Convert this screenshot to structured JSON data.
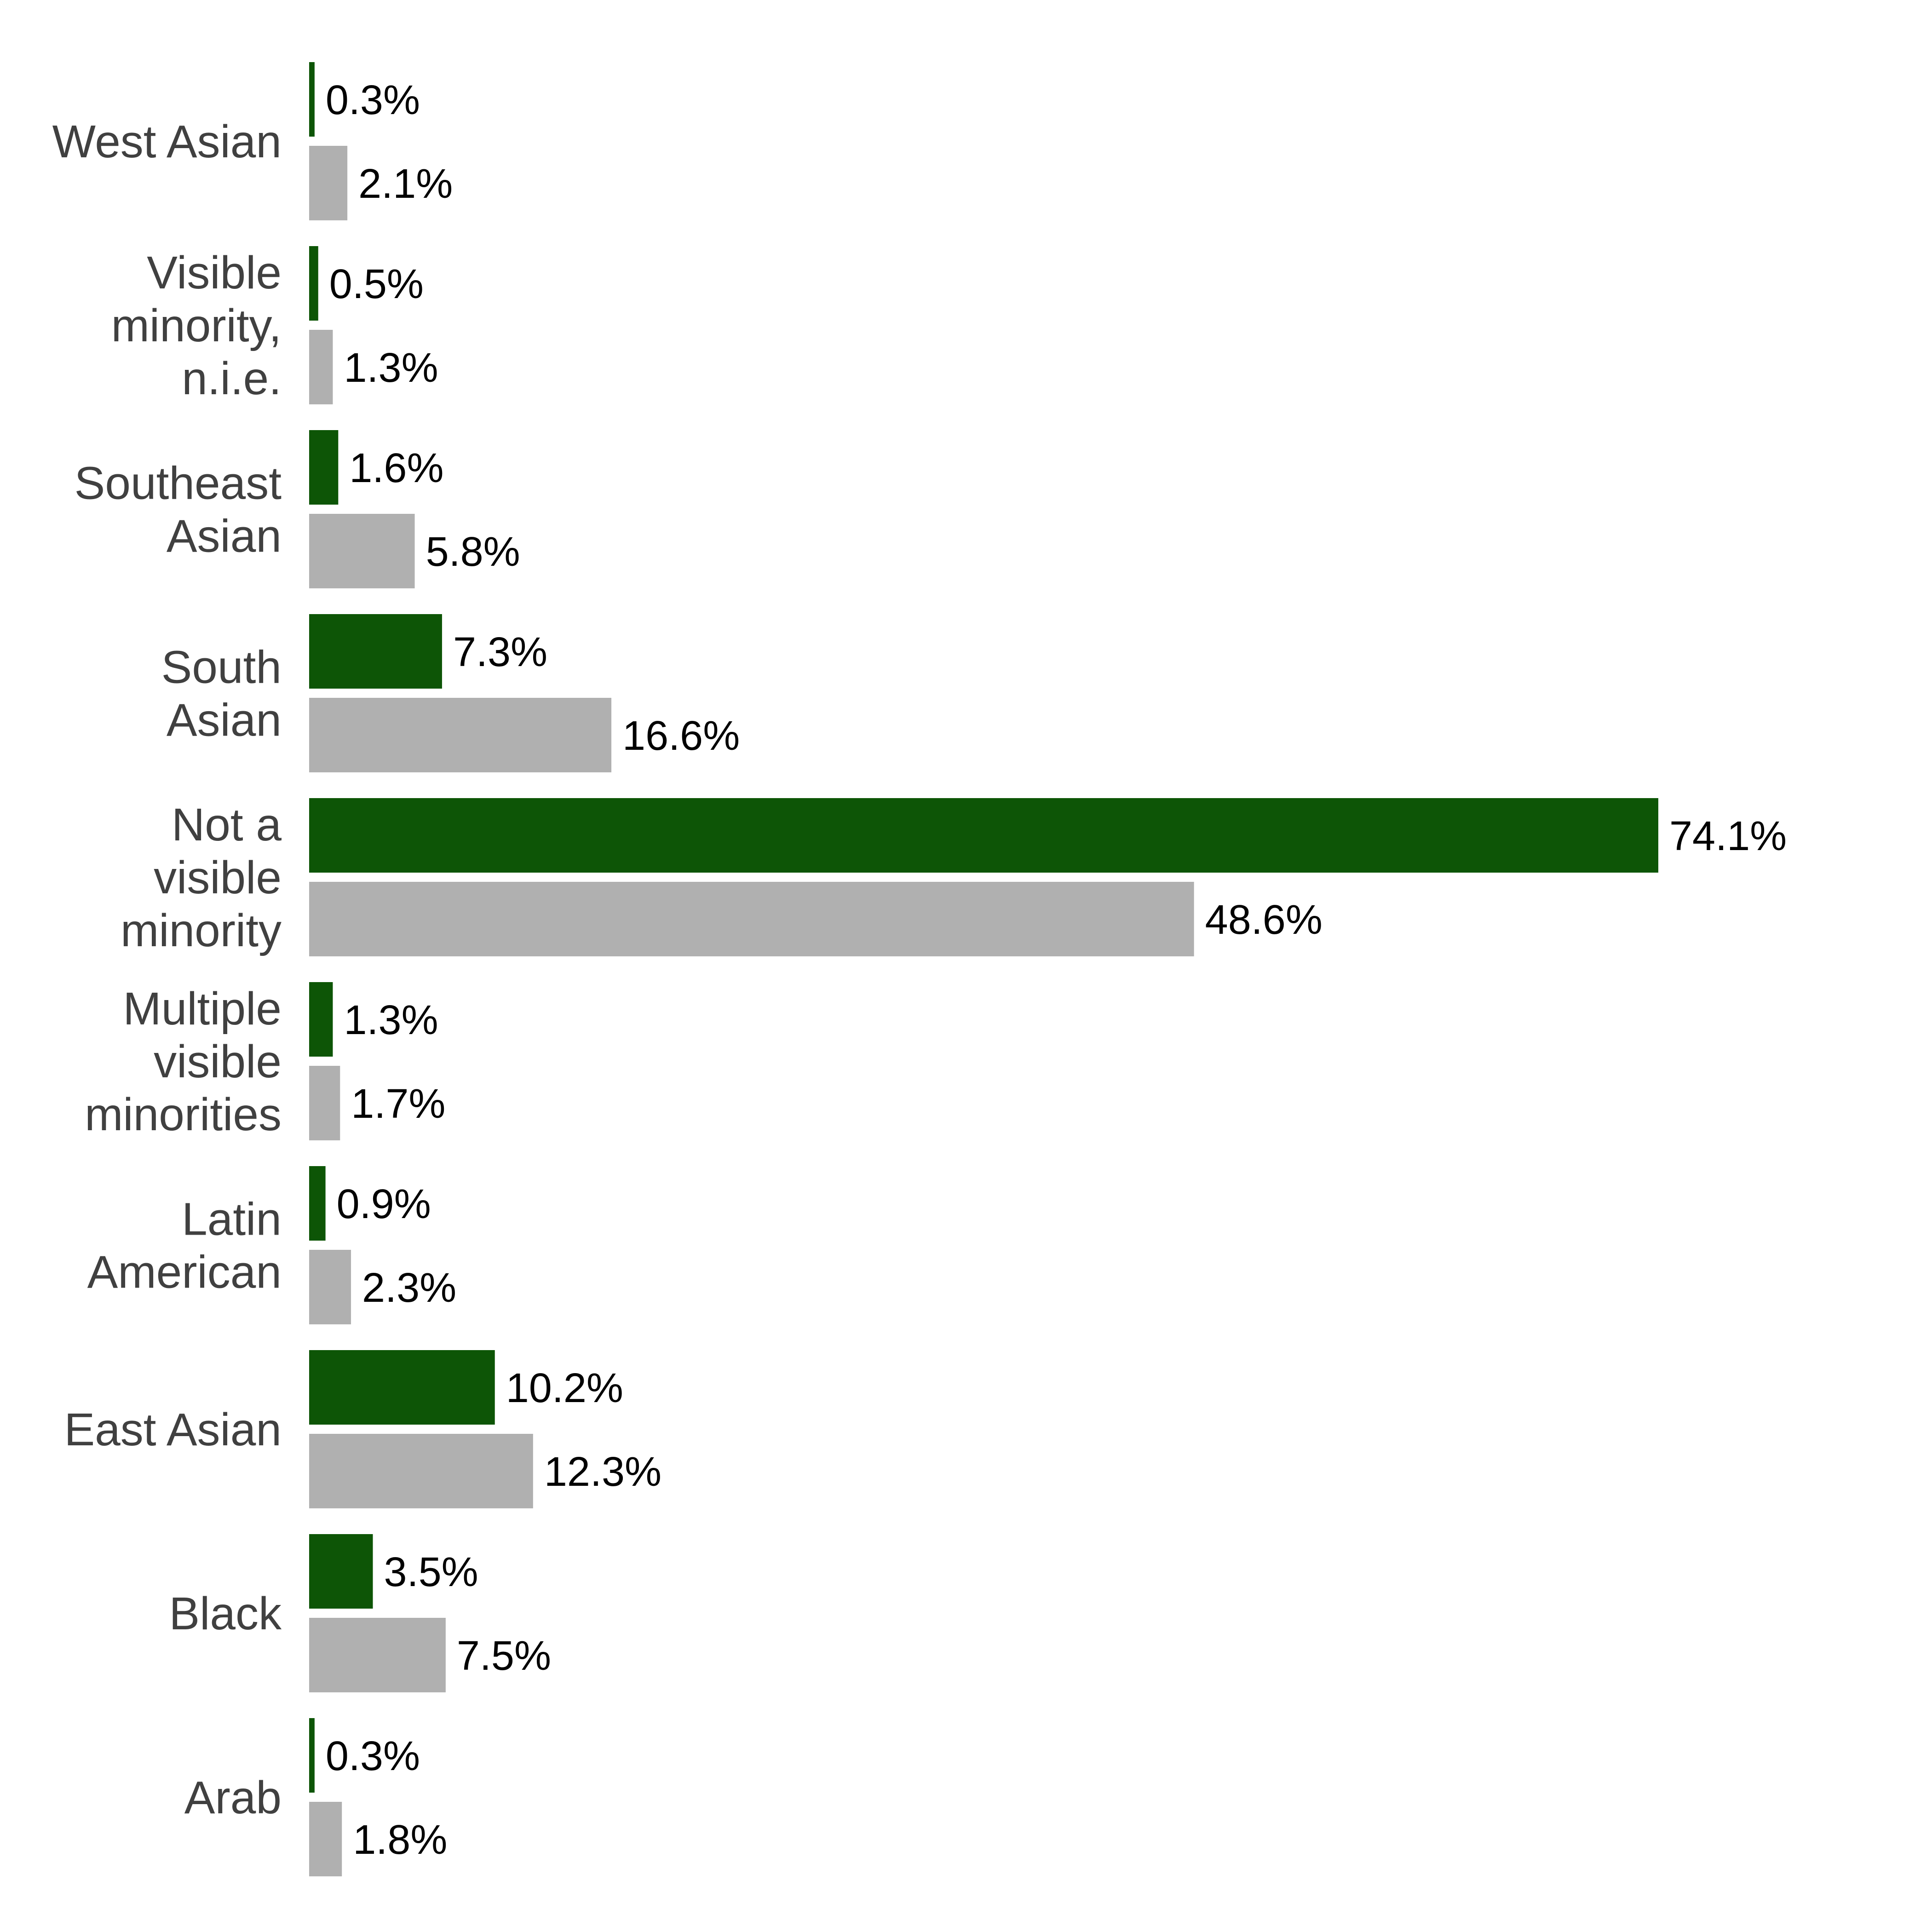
{
  "chart_data": {
    "type": "bar",
    "orientation": "horizontal",
    "categories": [
      [
        "West Asian"
      ],
      [
        "Visible",
        "minority,",
        "n.i.e."
      ],
      [
        "Southeast",
        "Asian"
      ],
      [
        "South",
        "Asian"
      ],
      [
        "Not a",
        "visible",
        "minority"
      ],
      [
        "Multiple",
        "visible",
        "minorities"
      ],
      [
        "Latin",
        "American"
      ],
      [
        "East Asian"
      ],
      [
        "Black"
      ],
      [
        "Arab"
      ]
    ],
    "series": [
      {
        "color": "#0d5506",
        "values": [
          0.3,
          0.5,
          1.6,
          7.3,
          74.1,
          1.3,
          0.9,
          10.2,
          3.5,
          0.3
        ],
        "labels": [
          "0.3%",
          "0.5%",
          "1.6%",
          "7.3%",
          "74.1%",
          "1.3%",
          "0.9%",
          "10.2%",
          "3.5%",
          "0.3%"
        ]
      },
      {
        "color": "#b0b0b0",
        "values": [
          2.1,
          1.3,
          5.8,
          16.6,
          48.6,
          1.7,
          2.3,
          12.3,
          7.5,
          1.8
        ],
        "labels": [
          "2.1%",
          "1.3%",
          "5.8%",
          "16.6%",
          "48.6%",
          "1.7%",
          "2.3%",
          "12.3%",
          "7.5%",
          "1.8%"
        ]
      }
    ],
    "xlim": [
      0,
      74.1
    ],
    "grid": false,
    "legend": false
  }
}
